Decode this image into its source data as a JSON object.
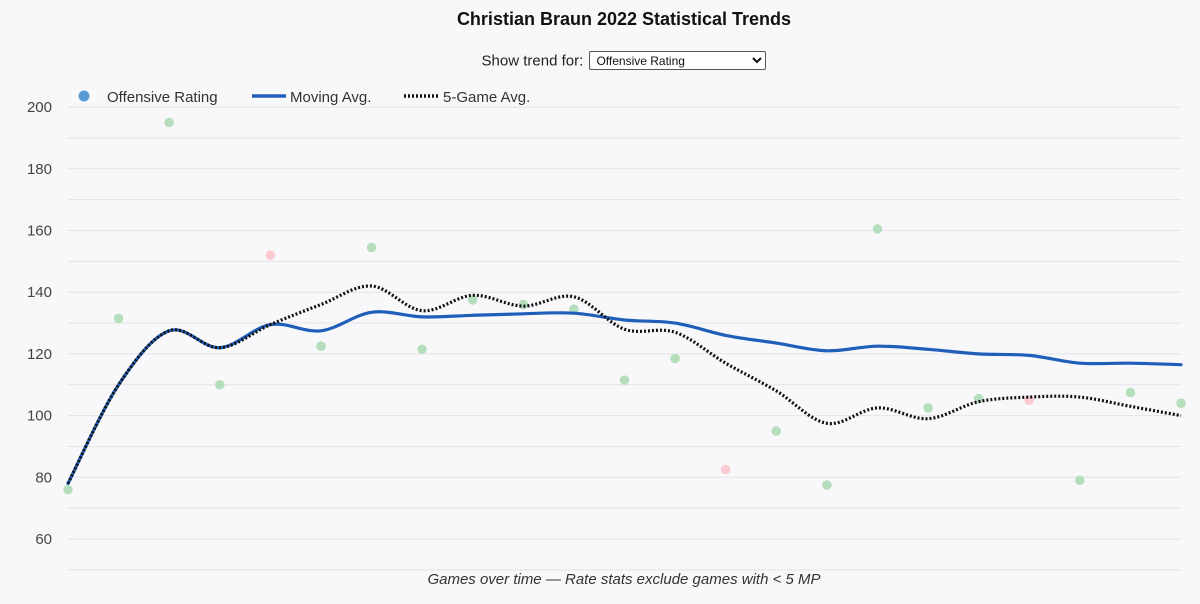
{
  "chart_data": {
    "type": "scatter",
    "title": "Christian Braun 2022 Statistical Trends",
    "xlabel": "Games over time — Rate stats exclude games with < 5 MP",
    "ylabel": "",
    "ylim": [
      53,
      210
    ],
    "yticks": [
      60,
      80,
      100,
      120,
      140,
      160,
      180,
      200
    ],
    "grid": true,
    "legend_position": "top-left",
    "control": {
      "label": "Show trend for:",
      "selected": "Offensive Rating"
    },
    "colors": {
      "point_above": "#b5dfbc",
      "point_below": "#fbc9d0",
      "legend_dot": "#5b9bd5",
      "moving_avg": "#1f5fb9",
      "five_game": "#111111",
      "grid": "#e3e3e8",
      "tick_label": "#444444"
    },
    "series": [
      {
        "name": "Offensive Rating",
        "x": [
          1,
          2,
          3,
          4,
          5,
          6,
          7,
          8,
          9,
          10,
          11,
          12,
          13,
          14,
          15,
          16,
          17,
          18,
          19,
          20,
          21,
          22,
          23
        ],
        "values": [
          76,
          131.5,
          195,
          110,
          152,
          122.5,
          154.5,
          121.5,
          137.5,
          136,
          134.5,
          111.5,
          118.5,
          82.5,
          95,
          77.5,
          160.5,
          102.5,
          105.5,
          105,
          79,
          107.5,
          104
        ],
        "below_avg": [
          false,
          false,
          false,
          false,
          true,
          false,
          false,
          false,
          false,
          false,
          false,
          false,
          false,
          true,
          false,
          false,
          false,
          false,
          false,
          true,
          false,
          false,
          false
        ]
      },
      {
        "name": "Moving Avg.",
        "x": [
          1,
          2,
          3,
          4,
          5,
          6,
          7,
          8,
          9,
          10,
          11,
          12,
          13,
          14,
          15,
          16,
          17,
          18,
          19,
          20,
          21,
          22,
          23
        ],
        "values": [
          78,
          110,
          127.5,
          122,
          129.5,
          127.5,
          133.5,
          132,
          132.5,
          133,
          133.2,
          131,
          130,
          126,
          123.5,
          121,
          122.5,
          121.5,
          120,
          119.5,
          117,
          117,
          116.5
        ]
      },
      {
        "name": "5-Game Avg.",
        "x": [
          1,
          2,
          3,
          4,
          5,
          6,
          7,
          8,
          9,
          10,
          11,
          12,
          13,
          14,
          15,
          16,
          17,
          18,
          19,
          20,
          21,
          22,
          23
        ],
        "values": [
          78,
          110,
          127.5,
          122,
          129.5,
          136,
          142,
          134,
          139,
          135.5,
          138.5,
          128,
          127,
          117,
          108,
          97.5,
          102.5,
          99,
          104.5,
          106,
          106,
          103,
          100
        ]
      }
    ]
  }
}
